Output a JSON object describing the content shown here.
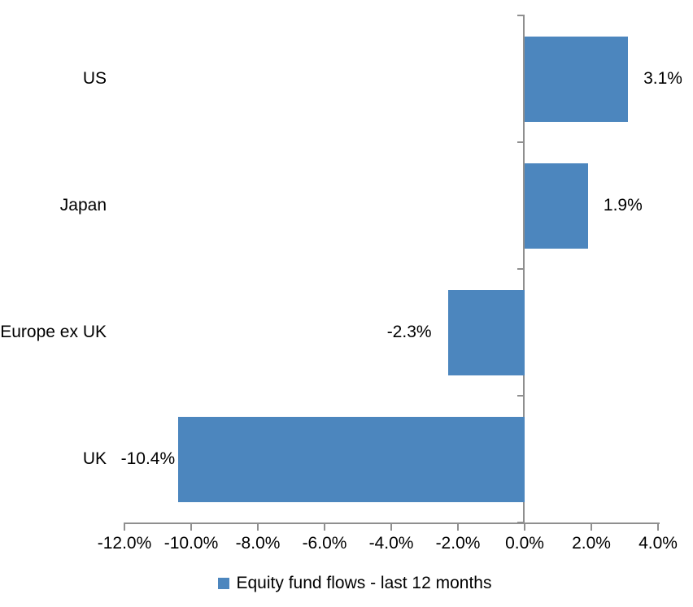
{
  "chart_data": {
    "type": "bar",
    "orientation": "horizontal",
    "title": "",
    "xlabel": "",
    "ylabel": "",
    "categories": [
      "US",
      "Japan",
      "Europe ex UK",
      "UK"
    ],
    "series": [
      {
        "name": "Equity fund flows - last 12 months",
        "values": [
          3.1,
          1.9,
          -2.3,
          -10.4
        ],
        "data_labels": [
          "3.1%",
          "1.9%",
          "-2.3%",
          "-10.4%"
        ],
        "color": "#4c86be"
      }
    ],
    "xlim": [
      -12,
      4
    ],
    "x_ticks": [
      -12,
      -10,
      -8,
      -6,
      -4,
      -2,
      0,
      2,
      4
    ],
    "x_tick_labels": [
      "-12.0%",
      "-10.0%",
      "-8.0%",
      "-6.0%",
      "-4.0%",
      "-2.0%",
      "0.0%",
      "2.0%",
      "4.0%"
    ],
    "grid": false,
    "legend": {
      "position": "bottom",
      "label": "Equity fund flows - last 12 months"
    },
    "colors": {
      "bar": "#4c86be",
      "axis": "#8f8f8f",
      "text": "#000000",
      "background": "#ffffff"
    }
  }
}
